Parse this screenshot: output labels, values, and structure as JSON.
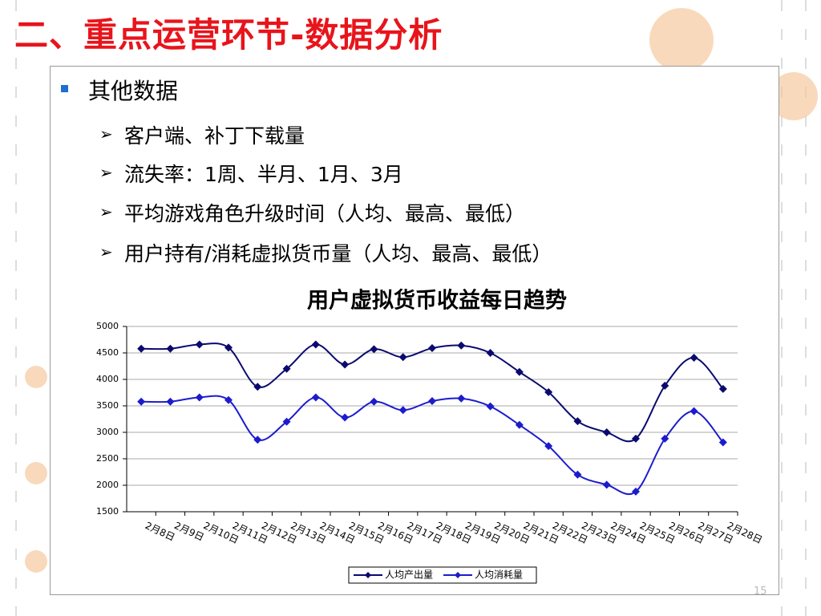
{
  "header": {
    "title": "二、重点运营环节-数据分析"
  },
  "bullets": {
    "title": "其他数据",
    "items": [
      "客户端、补丁下载量",
      "流失率：1周、半月、1月、3月",
      "平均游戏角色升级时间（人均、最高、最低）",
      "用户持有/消耗虚拟货币量（人均、最高、最低）"
    ]
  },
  "footer": {
    "page": "15"
  },
  "chart_data": {
    "type": "line",
    "title": "用户虚拟货币收益每日趋势",
    "categories": [
      "2月8日",
      "2月9日",
      "2月10日",
      "2月11日",
      "2月12日",
      "2月13日",
      "2月14日",
      "2月15日",
      "2月16日",
      "2月17日",
      "2月18日",
      "2月19日",
      "2月20日",
      "2月21日",
      "2月22日",
      "2月23日",
      "2月24日",
      "2月25日",
      "2月26日",
      "2月27日",
      "2月28日"
    ],
    "series": [
      {
        "name": "人均产出量",
        "color": "#0a0a6e",
        "values": [
          4580,
          4580,
          4660,
          4600,
          3860,
          4200,
          4660,
          4280,
          4570,
          4420,
          4590,
          4640,
          4500,
          4140,
          3760,
          3210,
          3000,
          2880,
          3880,
          4410,
          3820
        ]
      },
      {
        "name": "人均消耗量",
        "color": "#1c1ccc",
        "values": [
          3580,
          3580,
          3660,
          3610,
          2860,
          3200,
          3660,
          3280,
          3580,
          3420,
          3590,
          3640,
          3490,
          3140,
          2740,
          2200,
          2010,
          1880,
          2880,
          3400,
          2810
        ]
      }
    ],
    "ylim": [
      1500,
      5000
    ],
    "yticks": [
      1500,
      2000,
      2500,
      3000,
      3500,
      4000,
      4500,
      5000
    ],
    "grid": true,
    "legend": "bottom"
  }
}
